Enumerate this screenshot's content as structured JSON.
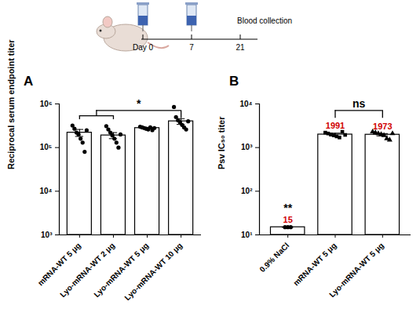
{
  "timeline": {
    "ticks": [
      {
        "value": 0,
        "label": "Day 0"
      },
      {
        "value": 7,
        "label": "7"
      },
      {
        "value": 21,
        "label": "21"
      }
    ],
    "doses_at": [
      0,
      7
    ],
    "annotation": "Blood collection"
  },
  "chart_data": [
    {
      "type": "bar",
      "title": "A",
      "y_label": "Reciprocal serum endpoint titer",
      "categories": [
        "mRNA-WT 5 μg",
        "Lyo-mRNA-WT 2 μg",
        "Lyo-mRNA-WT 5 μg",
        "Lyo-mRNA-WT 10 μg"
      ],
      "values": [
        220000,
        190000,
        280000,
        400000
      ],
      "errors": [
        40000,
        30000,
        10000,
        60000
      ],
      "points": [
        {
          "marker": "circle",
          "values": [
            320000,
            270000,
            220000,
            200000,
            160000,
            130000,
            80000,
            250000
          ]
        },
        {
          "marker": "circle",
          "values": [
            310000,
            260000,
            220000,
            190000,
            160000,
            130000,
            100000,
            200000
          ]
        },
        {
          "marker": "circle",
          "values": [
            300000,
            290000,
            280000,
            270000,
            260000,
            290000,
            250000,
            280000
          ]
        },
        {
          "marker": "circle",
          "values": [
            850000,
            500000,
            420000,
            380000,
            330000,
            290000,
            260000,
            400000
          ]
        }
      ],
      "significance": [
        {
          "groups": [
            [
              0,
              1
            ],
            [
              3
            ]
          ],
          "label": "*"
        }
      ],
      "log": "y",
      "ylim": [
        1000,
        1000000
      ],
      "yticks": [
        {
          "value": 1000,
          "label": "10³"
        },
        {
          "value": 10000,
          "label": "10⁴"
        },
        {
          "value": 100000,
          "label": "10⁵"
        },
        {
          "value": 1000000,
          "label": "10⁶"
        }
      ],
      "color": "#ffffff",
      "data_labels": false
    },
    {
      "type": "bar",
      "title": "B",
      "y_label": "Psv IC₅₀ titer",
      "categories": [
        "0.9% NaCl",
        "mRNA-WT 5 μg",
        "Lyo-mRNA-WT 5 μg"
      ],
      "values": [
        15,
        1991,
        1973
      ],
      "errors": [
        0,
        150,
        120
      ],
      "points": [
        {
          "marker": "circle",
          "values": [
            15,
            15,
            15
          ]
        },
        {
          "marker": "square",
          "values": [
            2200,
            2100,
            2000,
            1900,
            1800,
            1700,
            2300,
            1950
          ]
        },
        {
          "marker": "triangle",
          "values": [
            2300,
            2200,
            2100,
            2000,
            1900,
            1600,
            1500,
            2100
          ]
        }
      ],
      "significance": [
        {
          "groups": [
            [
              0
            ]
          ],
          "label": "**"
        },
        {
          "groups": [
            [
              1
            ],
            [
              2
            ]
          ],
          "label": "ns"
        }
      ],
      "log": "y",
      "ylim": [
        10,
        10000
      ],
      "yticks": [
        {
          "value": 10,
          "label": "10¹"
        },
        {
          "value": 100,
          "label": "10²"
        },
        {
          "value": 1000,
          "label": "10³"
        },
        {
          "value": 10000,
          "label": "10⁴"
        }
      ],
      "color": "#ffffff",
      "data_labels": true
    }
  ]
}
